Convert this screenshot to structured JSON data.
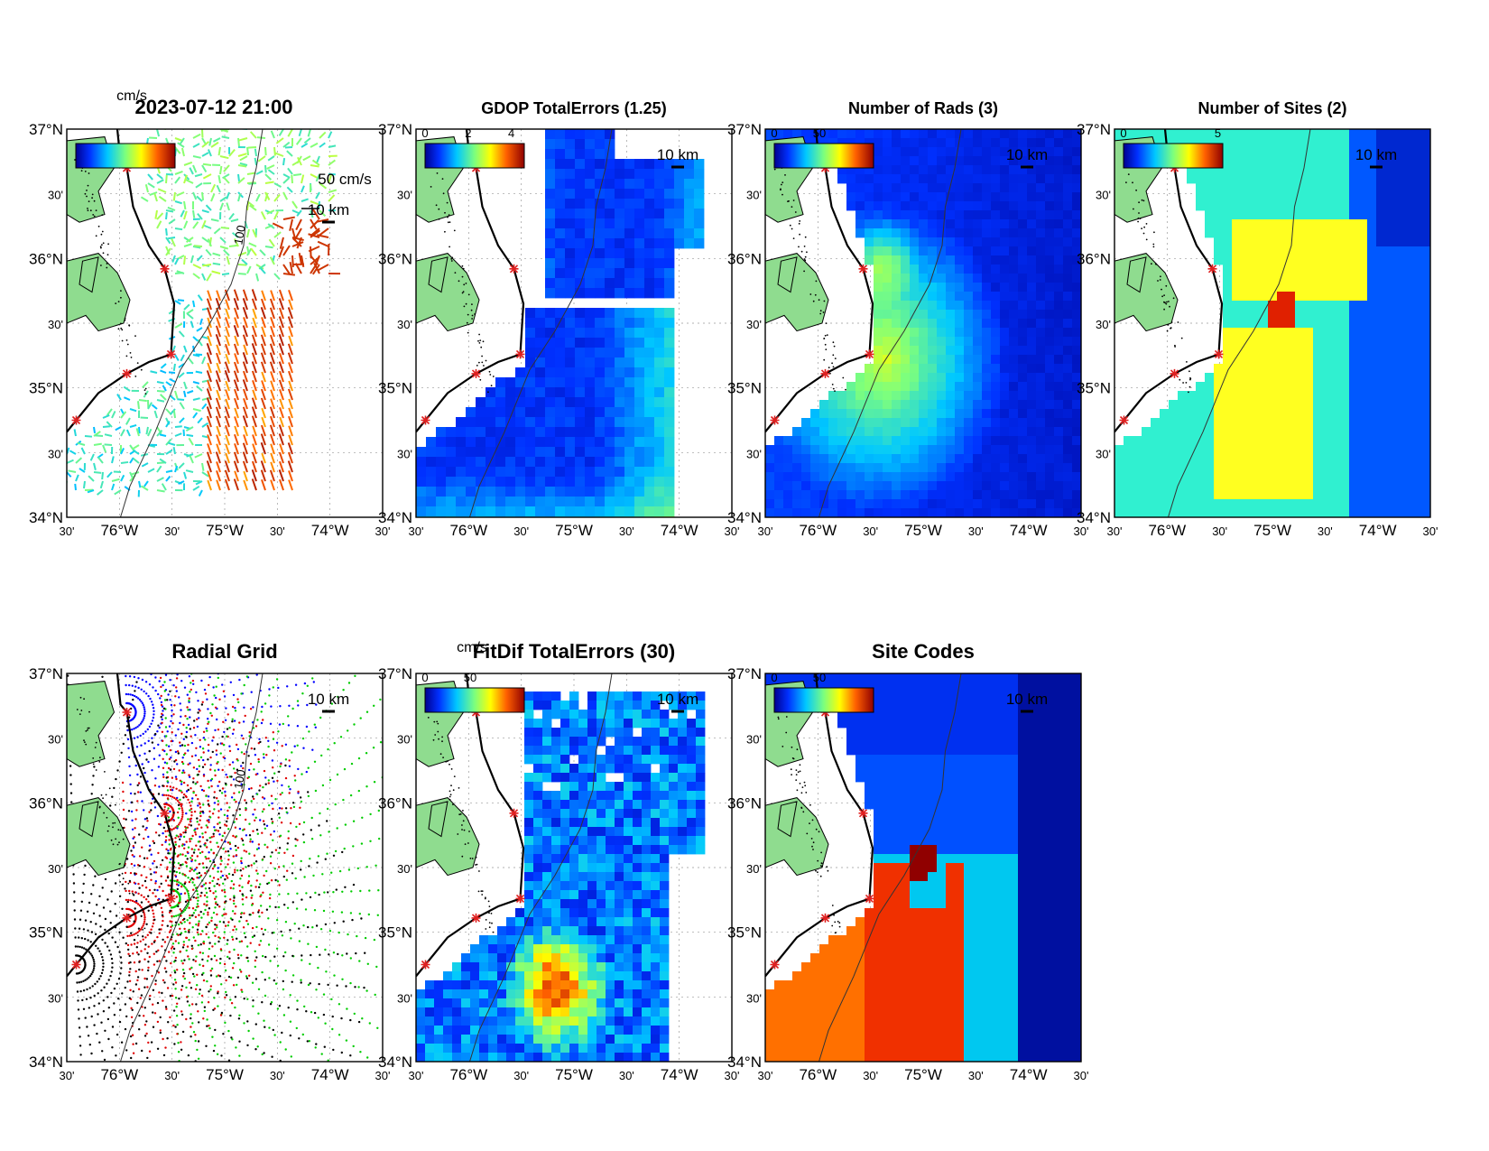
{
  "figure": {
    "timestamp": "2023-07-12 21:00",
    "velocity_unit": "cm/s",
    "velocity_scale_label": "50 cm/s",
    "scale_bar_label": "10 km",
    "contour_100_label": "100"
  },
  "axes": {
    "lat_labels": [
      "37°N",
      "30'",
      "36°N",
      "30'",
      "35°N",
      "30'",
      "34°N"
    ],
    "lon_labels": [
      "30'",
      "76°W",
      "30'",
      "75°W",
      "30'",
      "74°W",
      "30'"
    ]
  },
  "colorscale": [
    "#00008f",
    "#0050ff",
    "#00c8ff",
    "#60ffa0",
    "#ffff00",
    "#ff8000",
    "#d00000",
    "#800000"
  ],
  "land_color": "#8fdc8f",
  "sites_marker_color": "#e02020",
  "panels": [
    {
      "id": "totals",
      "title": "2023-07-12 21:00",
      "cbar_ticks": [],
      "cbar_unit": "cm/s"
    },
    {
      "id": "gdop",
      "title": "GDOP TotalErrors (1.25)",
      "cbar_ticks": [
        "0",
        "2",
        "4"
      ],
      "contour_label": "1.25"
    },
    {
      "id": "nrads",
      "title": "Number of Rads (3)",
      "cbar_ticks": [
        "0",
        "50"
      ],
      "contour_label": "3"
    },
    {
      "id": "nsites",
      "title": "Number of Sites (2)",
      "cbar_ticks": [
        "0",
        "5"
      ],
      "contour_label": "2"
    },
    {
      "id": "radgrid",
      "title": "Radial Grid",
      "cbar_ticks": []
    },
    {
      "id": "fitdif",
      "title": "FitDif TotalErrors (30)",
      "cbar_ticks": [
        "0",
        "50"
      ],
      "cbar_unit": "cm/s",
      "contour_label": "30"
    },
    {
      "id": "sitecodes",
      "title": "Site Codes",
      "cbar_ticks": [
        "0",
        "50"
      ]
    }
  ],
  "radial_grid_colors": [
    "#0000ff",
    "#e00000",
    "#00cc00",
    "#000000"
  ]
}
